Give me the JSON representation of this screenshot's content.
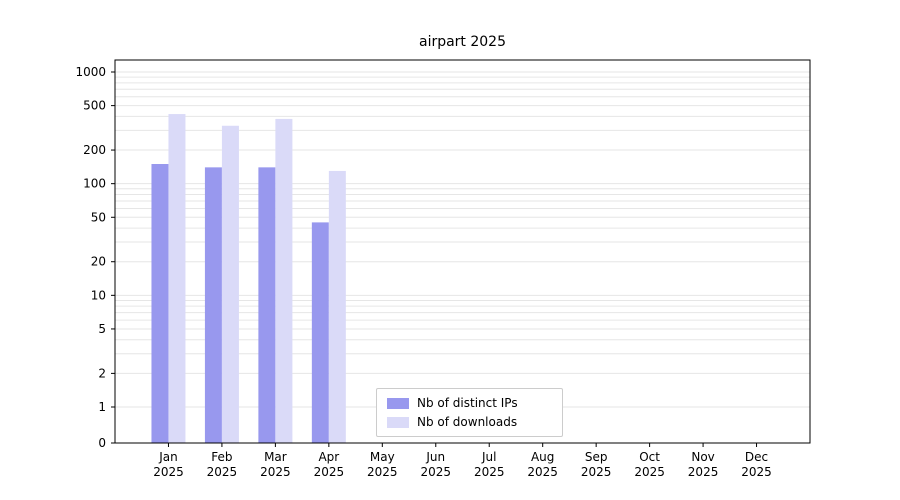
{
  "title": "airpart 2025",
  "chart_data": {
    "type": "bar",
    "title": "airpart 2025",
    "categories": [
      "Jan 2025",
      "Feb 2025",
      "Mar 2025",
      "Apr 2025",
      "May 2025",
      "Jun 2025",
      "Jul 2025",
      "Aug 2025",
      "Sep 2025",
      "Oct 2025",
      "Nov 2025",
      "Dec 2025"
    ],
    "series": [
      {
        "name": "Nb of distinct IPs",
        "color": "#9898ee",
        "values": [
          150,
          140,
          140,
          45,
          0,
          0,
          0,
          0,
          0,
          0,
          0,
          0
        ]
      },
      {
        "name": "Nb of downloads",
        "color": "#dadaf8",
        "values": [
          420,
          330,
          380,
          130,
          0,
          0,
          0,
          0,
          0,
          0,
          0,
          0
        ]
      }
    ],
    "xlabel": "",
    "ylabel": "",
    "yscale": "symlog",
    "yticks": [
      0,
      1,
      2,
      5,
      10,
      20,
      50,
      100,
      200,
      500,
      1000
    ],
    "ylim": [
      0,
      1280
    ],
    "grid": "horizontal-log-minor",
    "legend_position": "lower center",
    "colors": {
      "axis": "#000000",
      "grid": "#e6e6e6",
      "tick_text": "#000000",
      "background": "#ffffff"
    }
  }
}
